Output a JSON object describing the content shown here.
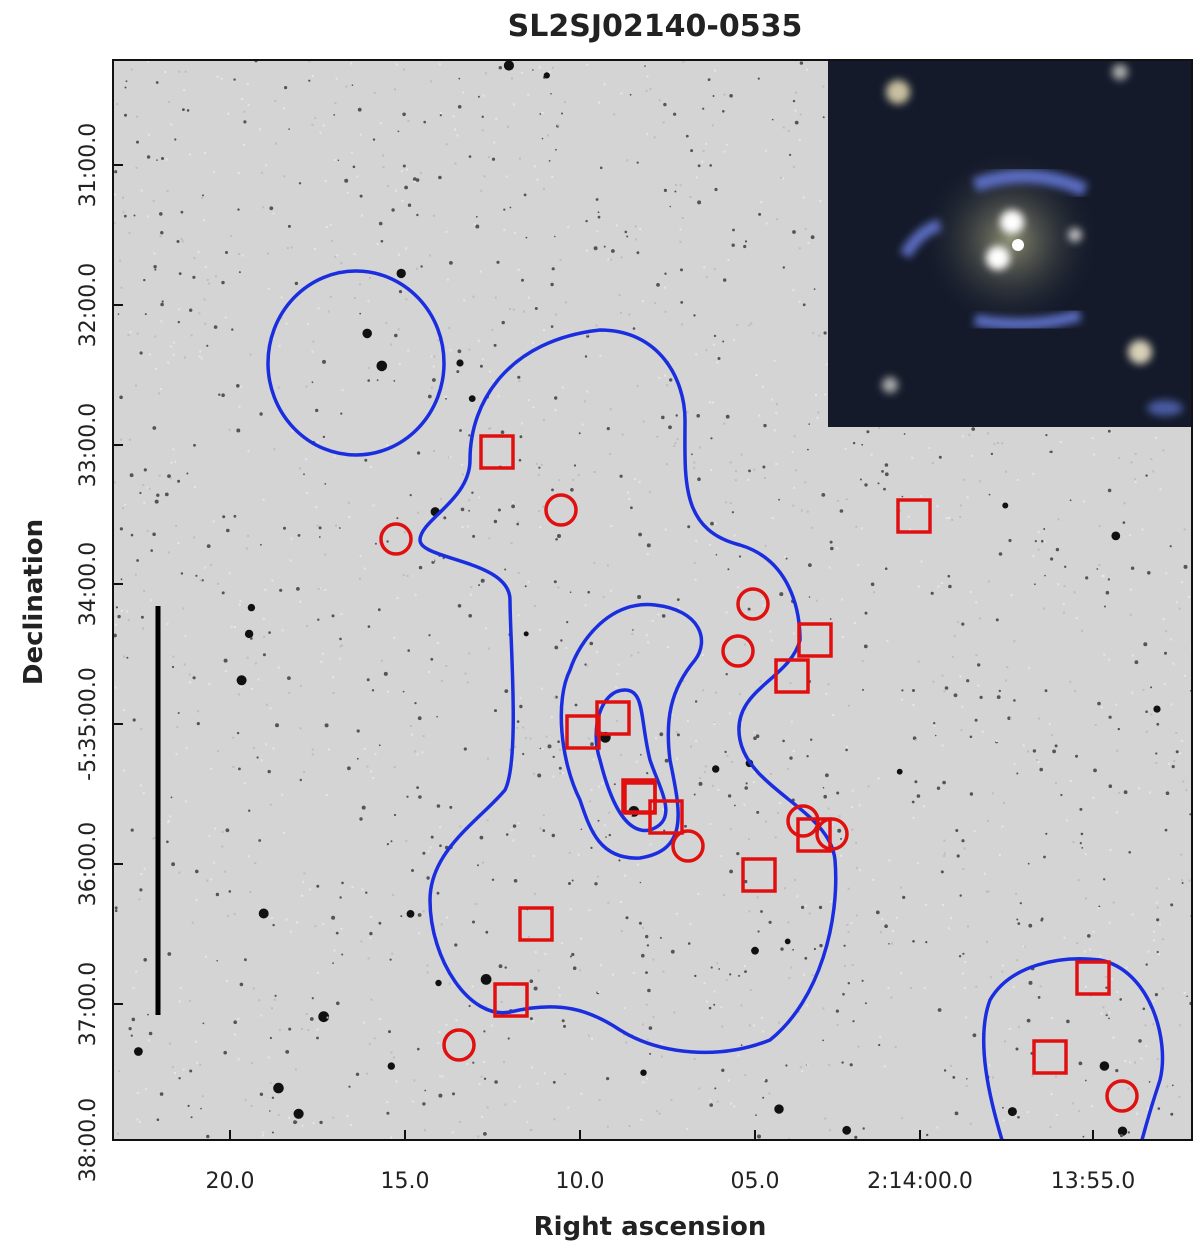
{
  "title": "SL2SJ02140-0535",
  "x_axis": {
    "label": "Right ascension",
    "ticks": [
      "20.0",
      "15.0",
      "10.0",
      "05.0",
      "2:14:00.0",
      "13:55.0"
    ]
  },
  "y_axis": {
    "label": "Declination",
    "ticks": [
      "31:00.0",
      "32:00.0",
      "33:00.0",
      "34:00.0",
      "-5:35:00.0",
      "36:00.0",
      "37:00.0",
      "38:00.0"
    ]
  }
}
